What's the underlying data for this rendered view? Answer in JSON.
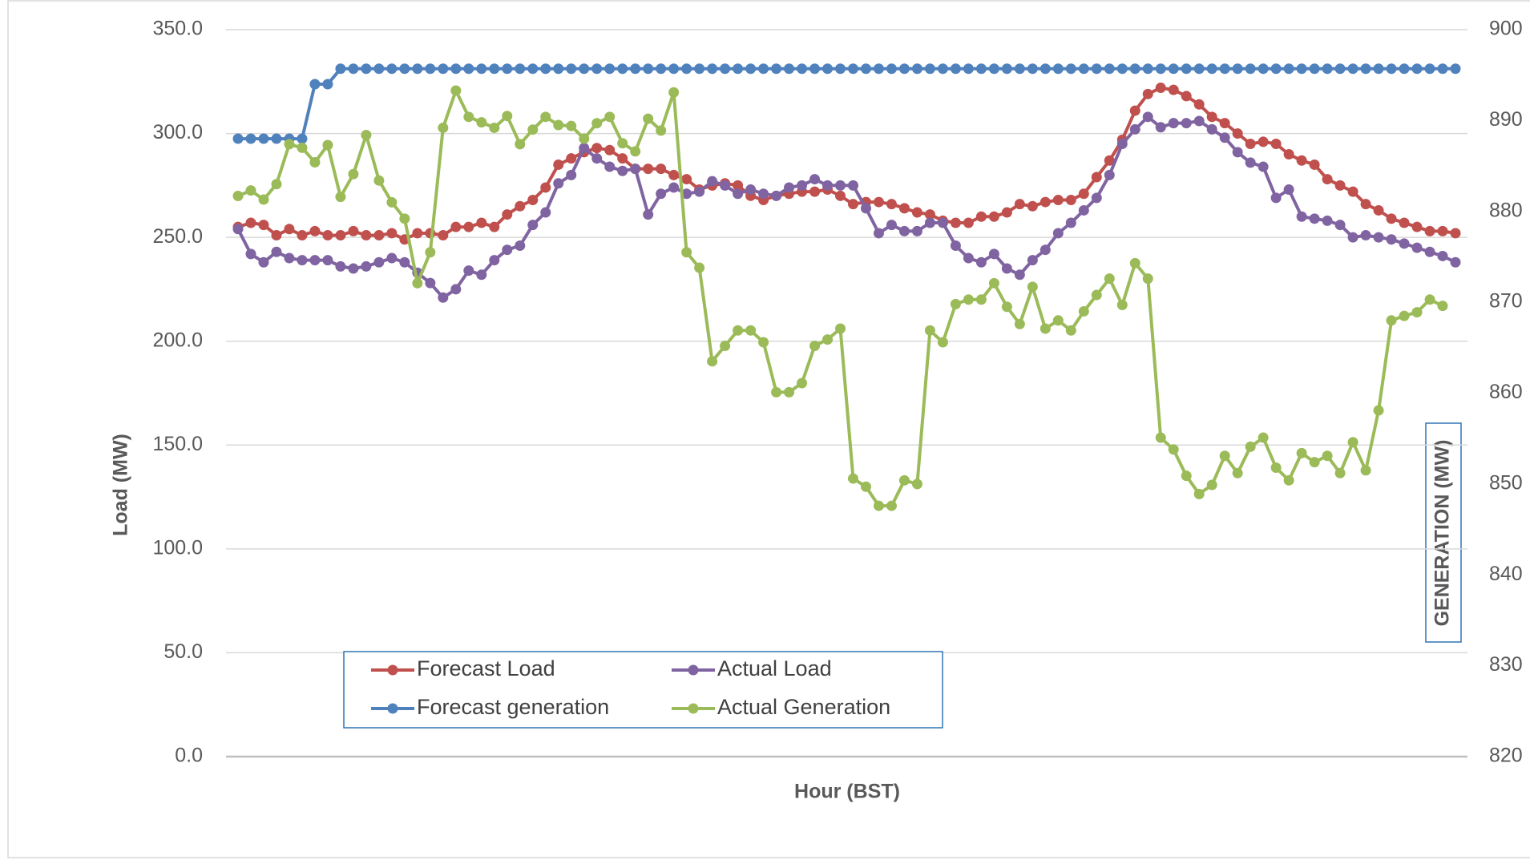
{
  "chart_data": {
    "type": "line",
    "ylabel": "Load (MW)",
    "y2label": "GENERATION (MW)",
    "xlabel": "Hour (BST)",
    "ylim": [
      0,
      350
    ],
    "yticks": [
      {
        "value": 0,
        "label": "0.0"
      },
      {
        "value": 50,
        "label": "50.0"
      },
      {
        "value": 100,
        "label": "100.0"
      },
      {
        "value": 150,
        "label": "150.0"
      },
      {
        "value": 200,
        "label": "200.0"
      },
      {
        "value": 250,
        "label": "250.0"
      },
      {
        "value": 300,
        "label": "300.0"
      },
      {
        "value": 350,
        "label": "350.0"
      }
    ],
    "y2lim": [
      820,
      900
    ],
    "y2ticks": [
      820,
      830,
      840,
      850,
      860,
      870,
      880,
      890,
      900
    ],
    "grid": true,
    "series": [
      {
        "name": "Forecast Load",
        "color": "#c0504d",
        "values": [
          255,
          257,
          256,
          251,
          254,
          251,
          253,
          251,
          251,
          253,
          251,
          251,
          252,
          249,
          252,
          252,
          251,
          255,
          255,
          257,
          255,
          261,
          265,
          268,
          274,
          285,
          288,
          291,
          293,
          292,
          288,
          283,
          283,
          283,
          280,
          278,
          273,
          275,
          276,
          275,
          270,
          268,
          270,
          271,
          272,
          272,
          273,
          270,
          266,
          267,
          267,
          266,
          264,
          262,
          261,
          258,
          257,
          257,
          260,
          260,
          262,
          266,
          265,
          267,
          268,
          268,
          271,
          279,
          287,
          297,
          311,
          319,
          322,
          321,
          318,
          314,
          308,
          305,
          300,
          295,
          296,
          295,
          290,
          287,
          285,
          278,
          275,
          272,
          266,
          263,
          259,
          257,
          255,
          253,
          253,
          252
        ]
      },
      {
        "name": "Actual Load",
        "color": "#8064a2",
        "values": [
          254,
          242,
          238,
          243,
          240,
          239,
          239,
          239,
          236,
          235,
          236,
          238,
          240,
          238,
          233,
          228,
          221,
          225,
          234,
          232,
          239,
          244,
          246,
          256,
          262,
          276,
          280,
          293,
          288,
          284,
          282,
          283,
          261,
          271,
          274,
          271,
          272,
          277,
          275,
          271,
          273,
          271,
          270,
          274,
          275,
          278,
          275,
          275,
          275,
          264,
          252,
          256,
          253,
          253,
          257,
          257,
          246,
          240,
          238,
          242,
          235,
          232,
          239,
          244,
          252,
          257,
          263,
          269,
          280,
          295,
          302,
          308,
          303,
          305,
          305,
          306,
          302,
          298,
          291,
          286,
          284,
          269,
          273,
          260,
          259,
          258,
          256,
          250,
          251,
          250,
          249,
          247,
          245,
          243,
          241,
          238
        ]
      },
      {
        "name": "Forecast generation",
        "color": "#4f81bd",
        "axis": "y2",
        "values": [
          888,
          888,
          888,
          888,
          888,
          888,
          894,
          894,
          895.7,
          895.7,
          895.7,
          895.7,
          895.7,
          895.7,
          895.7,
          895.7,
          895.7,
          895.7,
          895.7,
          895.7,
          895.7,
          895.7,
          895.7,
          895.7,
          895.7,
          895.7,
          895.7,
          895.7,
          895.7,
          895.7,
          895.7,
          895.7,
          895.7,
          895.7,
          895.7,
          895.7,
          895.7,
          895.7,
          895.7,
          895.7,
          895.7,
          895.7,
          895.7,
          895.7,
          895.7,
          895.7,
          895.7,
          895.7,
          895.7,
          895.7,
          895.7,
          895.7,
          895.7,
          895.7,
          895.7,
          895.7,
          895.7,
          895.7,
          895.7,
          895.7,
          895.7,
          895.7,
          895.7,
          895.7,
          895.7,
          895.7,
          895.7,
          895.7,
          895.7,
          895.7,
          895.7,
          895.7,
          895.7,
          895.7,
          895.7,
          895.7,
          895.7,
          895.7,
          895.7,
          895.7,
          895.7,
          895.7,
          895.7,
          895.7,
          895.7,
          895.7,
          895.7,
          895.7,
          895.7,
          895.7,
          895.7,
          895.7,
          895.7,
          895.7,
          895.7,
          895.7
        ]
      },
      {
        "name": "Actual Generation",
        "color": "#9bbb59",
        "axis": "y2",
        "values": [
          881.7,
          882.3,
          881.3,
          883,
          887.4,
          887,
          885.4,
          887.3,
          881.6,
          884.1,
          888.4,
          883.4,
          881,
          879.2,
          872.1,
          875.5,
          889.2,
          893.3,
          890.4,
          889.8,
          889.2,
          890.5,
          887.4,
          889,
          890.4,
          889.5,
          889.4,
          888,
          889.7,
          890.4,
          887.5,
          886.6,
          890.2,
          888.9,
          893.1,
          875.5,
          873.8,
          863.5,
          865.2,
          866.9,
          866.9,
          865.6,
          860.1,
          860.1,
          861.1,
          865.2,
          865.9,
          867.1,
          850.6,
          849.7,
          847.6,
          847.6,
          850.4,
          850,
          866.9,
          865.6,
          869.8,
          870.3,
          870.3,
          872.1,
          869.5,
          867.6,
          871.7,
          867.1,
          868,
          866.9,
          869,
          870.8,
          872.6,
          869.7,
          874.3,
          872.6,
          855.1,
          853.8,
          850.9,
          848.9,
          849.9,
          853.1,
          851.2,
          854.1,
          855.1,
          851.8,
          850.4,
          853.4,
          852.4,
          853.1,
          851.2,
          854.6,
          851.5,
          858.1,
          868,
          868.5,
          868.9,
          870.3,
          869.6,
          null
        ]
      }
    ]
  }
}
